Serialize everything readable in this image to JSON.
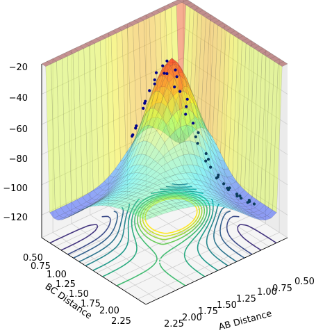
{
  "chart_data": {
    "type": "surface3d",
    "title": "",
    "z_axis": {
      "ticks": [
        -20,
        -40,
        -60,
        -80,
        -100,
        -120
      ],
      "tick_labels": [
        "−20",
        "−40",
        "−60",
        "−80",
        "−100",
        "−120"
      ],
      "range": [
        -135,
        -20
      ]
    },
    "bc_axis": {
      "label": "BC Distance",
      "ticks": [
        0.5,
        0.75,
        1.0,
        1.25,
        1.5,
        1.75,
        2.0,
        2.25
      ],
      "tick_labels": [
        "0.50",
        "0.75",
        "1.00",
        "1.25",
        "1.50",
        "1.75",
        "2.00",
        "2.25"
      ],
      "range": [
        0.5,
        2.4
      ]
    },
    "ab_axis": {
      "label": "AB Distance",
      "ticks": [
        0.5,
        0.75,
        1.0,
        1.25,
        1.5,
        1.75,
        2.0,
        2.25
      ],
      "tick_labels": [
        "0.50",
        "0.75",
        "1.00",
        "1.25",
        "1.50",
        "1.75",
        "2.00",
        "2.25"
      ],
      "range": [
        0.5,
        2.4
      ]
    },
    "grid": true,
    "surface_colormap": "jet",
    "contour_colormap": "viridis",
    "contour_levels": 14,
    "trajectory_points": 45
  }
}
